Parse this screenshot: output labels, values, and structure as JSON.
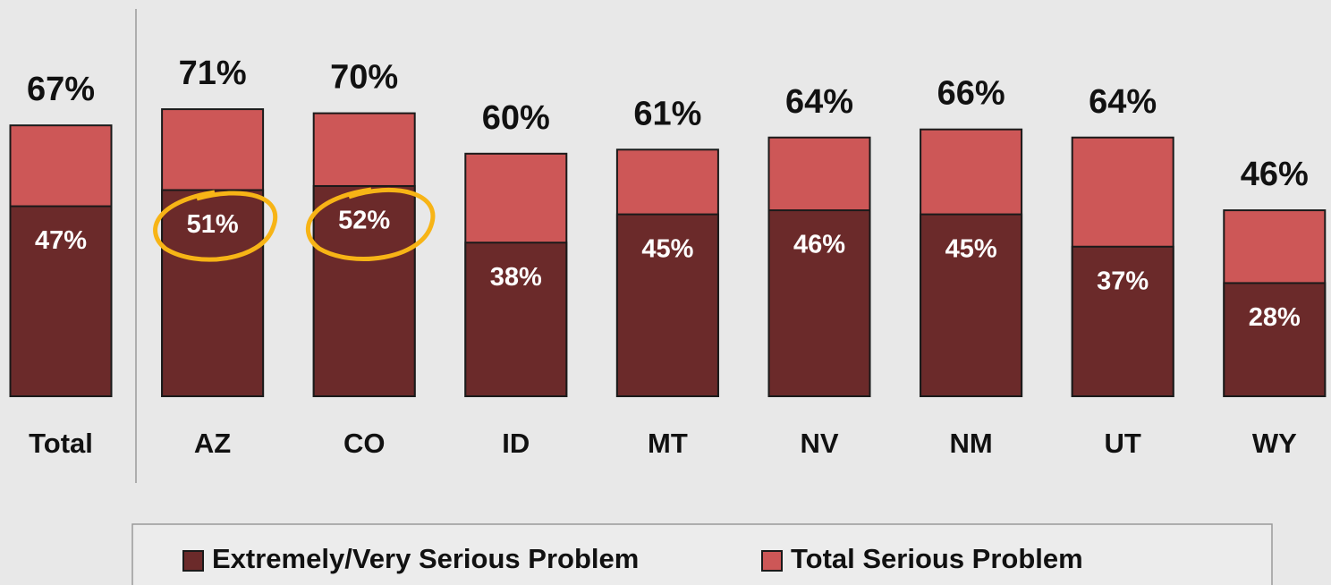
{
  "chart_data": {
    "type": "bar",
    "categories": [
      "Total",
      "AZ",
      "CO",
      "ID",
      "MT",
      "NV",
      "NM",
      "UT",
      "WY"
    ],
    "series": [
      {
        "name": "Extremely/Very Serious Problem",
        "color": "#6b2a2a",
        "values": [
          47,
          51,
          52,
          38,
          45,
          46,
          45,
          37,
          28
        ],
        "value_labels": [
          "47%",
          "51%",
          "52%",
          "38%",
          "45%",
          "46%",
          "45%",
          "37%",
          "28%"
        ]
      },
      {
        "name": "Total Serious Problem",
        "color": "#cd5757",
        "values": [
          67,
          71,
          70,
          60,
          61,
          64,
          66,
          64,
          46
        ],
        "value_labels": [
          "67%",
          "71%",
          "70%",
          "60%",
          "61%",
          "64%",
          "66%",
          "64%",
          "46%"
        ]
      }
    ]
  }
}
